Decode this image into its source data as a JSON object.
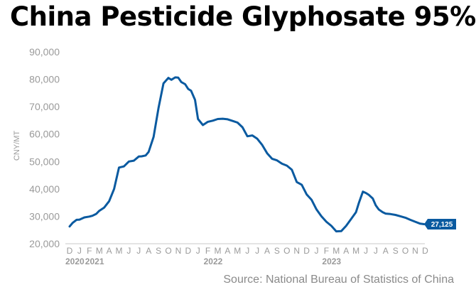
{
  "header": {
    "title": "China Pesticide Glyphosate 95%"
  },
  "footer": {
    "source": "Source: National Bureau of Statistics of China"
  },
  "colors": {
    "line": "#0a5aa0",
    "axis": "#9a9a9a",
    "label_bg": "#0a5aa0"
  },
  "chart_data": {
    "type": "line",
    "title": "China Pesticide Glyphosate 95%",
    "ylabel": "CNY/MT",
    "xlabel": "",
    "ylim": [
      20000,
      90000
    ],
    "y_ticks": [
      20000,
      30000,
      40000,
      50000,
      60000,
      70000,
      80000,
      90000
    ],
    "y_tick_labels": [
      "20,000",
      "30,000",
      "40,000",
      "50,000",
      "60,000",
      "70,000",
      "80,000",
      "90,000"
    ],
    "month_labels": [
      "D",
      "J",
      "F",
      "M",
      "A",
      "M",
      "J",
      "J",
      "A",
      "S",
      "O",
      "N",
      "D",
      "J",
      "F",
      "M",
      "A",
      "M",
      "J",
      "J",
      "A",
      "S",
      "O",
      "N",
      "D",
      "J",
      "F",
      "M",
      "A",
      "M",
      "J",
      "J",
      "A",
      "S",
      "O",
      "N",
      "D"
    ],
    "year_labels": [
      {
        "label": "2020",
        "month_index": 0
      },
      {
        "label": "2021",
        "month_index": 2
      },
      {
        "label": "2022",
        "month_index": 14
      },
      {
        "label": "2023",
        "month_index": 26
      }
    ],
    "grid": false,
    "end_label": "27,125",
    "series": [
      {
        "x": [
          0,
          0.3,
          0.7,
          1,
          1.5,
          2,
          2.3,
          2.7,
          3,
          3.5,
          4,
          4.5,
          5,
          5.5,
          6,
          6.5,
          7,
          7.3,
          7.7,
          8,
          8.5,
          9,
          9.5,
          10,
          10.3,
          10.7,
          11,
          11.3,
          11.7,
          12,
          12.3,
          12.7,
          13,
          13.5,
          14,
          14.5,
          15,
          15.5,
          16,
          16.5,
          17,
          17.5,
          18,
          18.5,
          19,
          19.5,
          20,
          20.5,
          21,
          21.5,
          22,
          22.5,
          23,
          23.5,
          24,
          24.5,
          25,
          25.5,
          26,
          26.5,
          27,
          27.5,
          28,
          28.5,
          29,
          29.3,
          29.7,
          30,
          30.3,
          30.7,
          31,
          31.3,
          31.7,
          32,
          32.5,
          33,
          33.5,
          34,
          34.5,
          35,
          35.5,
          35.9
        ],
        "values": [
          26300,
          27600,
          28700,
          28800,
          29600,
          29900,
          30200,
          30900,
          32000,
          33200,
          35500,
          40000,
          47800,
          48200,
          50000,
          50300,
          51800,
          51900,
          52200,
          53500,
          59000,
          69500,
          78500,
          80500,
          79800,
          80700,
          80600,
          79000,
          78200,
          76500,
          75800,
          72500,
          65500,
          63300,
          64500,
          64900,
          65500,
          65600,
          65400,
          64800,
          64200,
          62500,
          59200,
          59500,
          58300,
          56000,
          53000,
          51000,
          50400,
          49200,
          48500,
          47000,
          42500,
          41500,
          38000,
          36000,
          32500,
          30000,
          28000,
          26500,
          24500,
          24600,
          26500,
          29000,
          31500,
          35000,
          39000,
          38500,
          37800,
          36500,
          34000,
          32500,
          31500,
          31000,
          30800,
          30500,
          30000,
          29500,
          28700,
          28000,
          27300,
          27125
        ]
      }
    ]
  }
}
